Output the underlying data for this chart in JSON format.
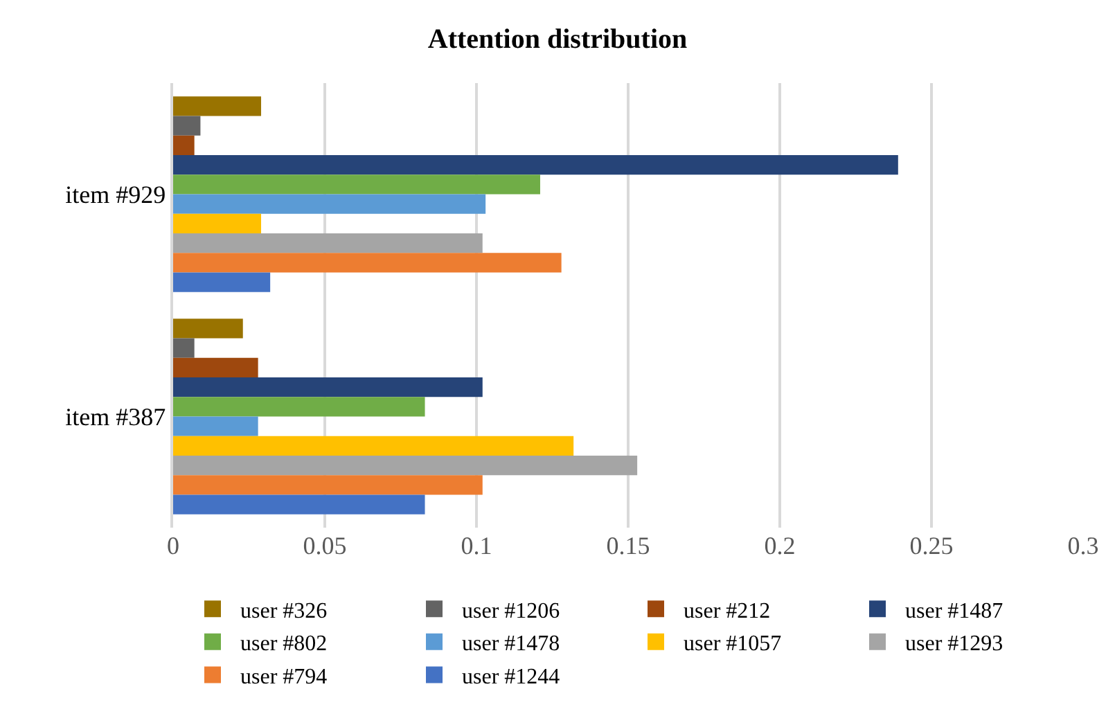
{
  "chart_data": {
    "type": "bar",
    "orientation": "horizontal",
    "title": "Attention distribution",
    "categories": [
      "item #929",
      "item #387"
    ],
    "series": [
      {
        "name": "user #326",
        "color": "#997300",
        "values": [
          0.029,
          0.023
        ]
      },
      {
        "name": "user #1206",
        "color": "#636363",
        "values": [
          0.009,
          0.007
        ]
      },
      {
        "name": "user #212",
        "color": "#9e480e",
        "values": [
          0.007,
          0.028
        ]
      },
      {
        "name": "user #1487",
        "color": "#264478",
        "values": [
          0.239,
          0.102
        ]
      },
      {
        "name": "user #802",
        "color": "#70ad47",
        "values": [
          0.121,
          0.083
        ]
      },
      {
        "name": "user #1478",
        "color": "#5b9bd5",
        "values": [
          0.103,
          0.028
        ]
      },
      {
        "name": "user #1057",
        "color": "#ffc000",
        "values": [
          0.029,
          0.132
        ]
      },
      {
        "name": "user #1293",
        "color": "#a5a5a5",
        "values": [
          0.102,
          0.153
        ]
      },
      {
        "name": "user #794",
        "color": "#ed7d31",
        "values": [
          0.128,
          0.102
        ]
      },
      {
        "name": "user #1244",
        "color": "#4472c4",
        "values": [
          0.032,
          0.083
        ]
      }
    ],
    "xlim": [
      0,
      0.3
    ],
    "xticks": [
      0,
      0.05,
      0.1,
      0.15,
      0.2,
      0.25,
      0.3
    ],
    "grid": "x",
    "legend": "bottom"
  }
}
